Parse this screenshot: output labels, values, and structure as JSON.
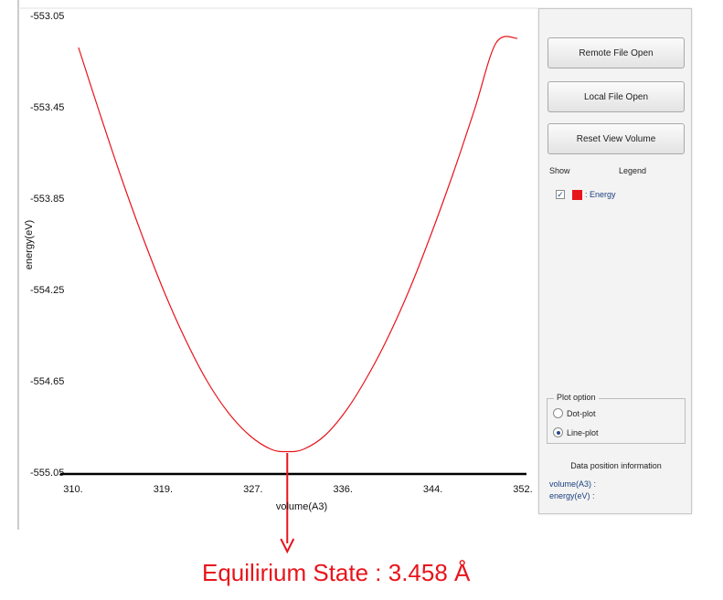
{
  "chart_data": {
    "type": "line",
    "xlabel": "volume(A3)",
    "ylabel": "energy(eV)",
    "xlim": [
      310.5,
      352.5
    ],
    "ylim": [
      -555.05,
      -553.05
    ],
    "x_ticks": [
      "310.",
      "319.",
      "327.",
      "336.",
      "344.",
      "352."
    ],
    "x_tick_values": [
      310.5,
      318.9,
      327.3,
      335.7,
      344.1,
      352.5
    ],
    "y_ticks": [
      "-553.05",
      "-553.45",
      "-553.85",
      "-554.25",
      "-554.65",
      "-555.05"
    ],
    "y_tick_values": [
      -553.05,
      -553.45,
      -553.85,
      -554.25,
      -554.65,
      -555.05
    ],
    "series": [
      {
        "name": "Energy",
        "color": "#e8141b",
        "x": [
          311.0,
          313.0,
          315.0,
          317.0,
          319.0,
          321.0,
          323.0,
          325.0,
          327.0,
          329.0,
          330.5,
          332.0,
          334.0,
          336.0,
          338.0,
          340.0,
          342.0,
          344.0,
          346.0,
          348.0,
          350.0,
          352.0
        ],
        "y": [
          -553.19,
          -553.48,
          -553.76,
          -554.02,
          -554.26,
          -554.47,
          -554.65,
          -554.79,
          -554.89,
          -554.95,
          -554.96,
          -554.95,
          -554.89,
          -554.78,
          -554.63,
          -554.45,
          -554.24,
          -554.0,
          -553.74,
          -553.46,
          -553.17,
          -553.15
        ]
      }
    ],
    "annotation": {
      "x": 330.5,
      "text": "Equilirium State : 3.458 Å",
      "color": "#e8141b"
    },
    "grid": false,
    "legend": "panel"
  },
  "panel": {
    "buttons": [
      "Remote File Open",
      "Local File Open",
      "Reset View Volume"
    ],
    "legend_show_header": "Show",
    "legend_header": "Legend",
    "legend_items": [
      {
        "label": ": Energy",
        "color": "#e8141b",
        "checked": true
      }
    ],
    "plot_option": {
      "title": "Plot option",
      "options": [
        "Dot-plot",
        "Line-plot"
      ],
      "selected": "Line-plot"
    },
    "data_position": {
      "title": "Data position information",
      "volume_label": "volume(A3) :",
      "energy_label": "energy(eV) :"
    }
  },
  "icons": {
    "check": "checkmark-icon",
    "arrow": "arrow-down-icon"
  }
}
